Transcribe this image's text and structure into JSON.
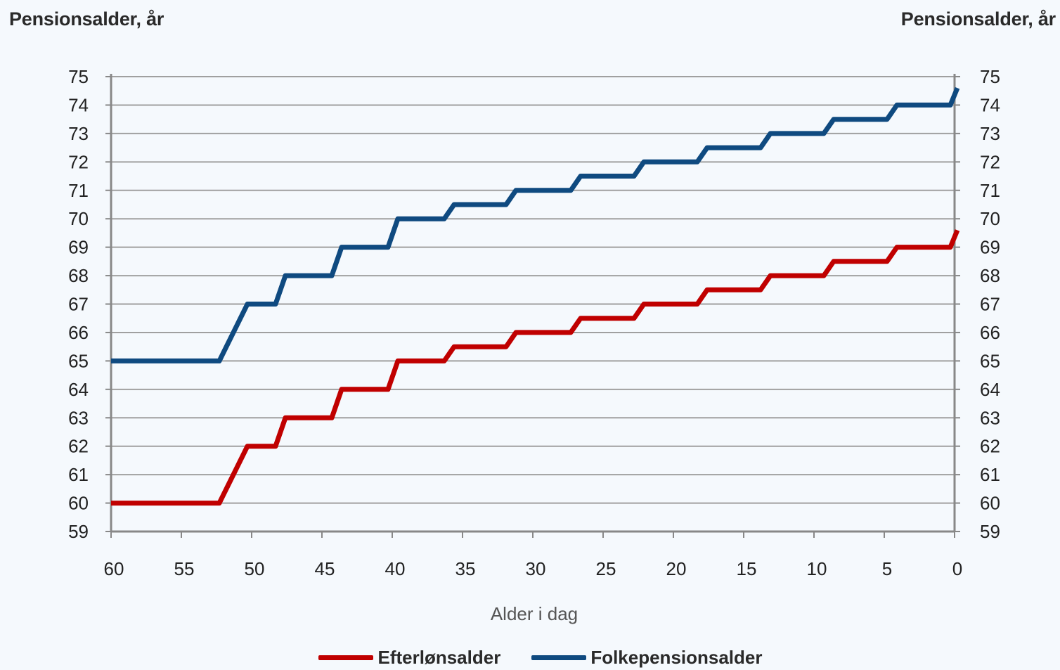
{
  "chart_data": {
    "type": "line",
    "y_title_left": "Pensionsalder, år",
    "y_title_right": "Pensionsalder, år",
    "xlabel": "Alder i dag",
    "xlim": [
      60,
      0
    ],
    "x_reversed": true,
    "ylim": [
      59,
      75
    ],
    "x_ticks": [
      60,
      55,
      50,
      45,
      40,
      35,
      30,
      25,
      20,
      15,
      10,
      5,
      0
    ],
    "y_ticks": [
      59,
      60,
      61,
      62,
      63,
      64,
      65,
      66,
      67,
      68,
      69,
      70,
      71,
      72,
      73,
      74,
      75
    ],
    "grid": "horizontal",
    "legend_position": "bottom",
    "x_axis_color": "#888888",
    "grid_color": "#a0a0a0",
    "series": [
      {
        "name": "Efterlønsalder",
        "color": "#c00000",
        "points": [
          [
            60,
            60
          ],
          [
            52.3,
            60
          ],
          [
            50.3,
            62
          ],
          [
            48.3,
            62
          ],
          [
            47.6,
            63
          ],
          [
            44.3,
            63
          ],
          [
            43.6,
            64
          ],
          [
            40.3,
            64
          ],
          [
            39.6,
            65
          ],
          [
            36.3,
            65
          ],
          [
            35.6,
            65.5
          ],
          [
            31.9,
            65.5
          ],
          [
            31.2,
            66
          ],
          [
            27.3,
            66
          ],
          [
            26.6,
            66.5
          ],
          [
            22.8,
            66.5
          ],
          [
            22.1,
            67
          ],
          [
            18.3,
            67
          ],
          [
            17.6,
            67.5
          ],
          [
            13.8,
            67.5
          ],
          [
            13.1,
            68
          ],
          [
            9.3,
            68
          ],
          [
            8.6,
            68.5
          ],
          [
            4.8,
            68.5
          ],
          [
            4.1,
            69
          ],
          [
            0.3,
            69
          ],
          [
            -0.2,
            69.6
          ]
        ]
      },
      {
        "name": "Folkepensionsalder",
        "color": "#0f4a80",
        "points": [
          [
            60,
            65
          ],
          [
            52.3,
            65
          ],
          [
            50.3,
            67
          ],
          [
            48.3,
            67
          ],
          [
            47.6,
            68
          ],
          [
            44.3,
            68
          ],
          [
            43.6,
            69
          ],
          [
            40.3,
            69
          ],
          [
            39.6,
            70
          ],
          [
            36.3,
            70
          ],
          [
            35.6,
            70.5
          ],
          [
            31.9,
            70.5
          ],
          [
            31.2,
            71
          ],
          [
            27.3,
            71
          ],
          [
            26.6,
            71.5
          ],
          [
            22.8,
            71.5
          ],
          [
            22.1,
            72
          ],
          [
            18.3,
            72
          ],
          [
            17.6,
            72.5
          ],
          [
            13.8,
            72.5
          ],
          [
            13.1,
            73
          ],
          [
            9.3,
            73
          ],
          [
            8.6,
            73.5
          ],
          [
            4.8,
            73.5
          ],
          [
            4.1,
            74
          ],
          [
            0.3,
            74
          ],
          [
            -0.2,
            74.6
          ]
        ]
      }
    ]
  }
}
